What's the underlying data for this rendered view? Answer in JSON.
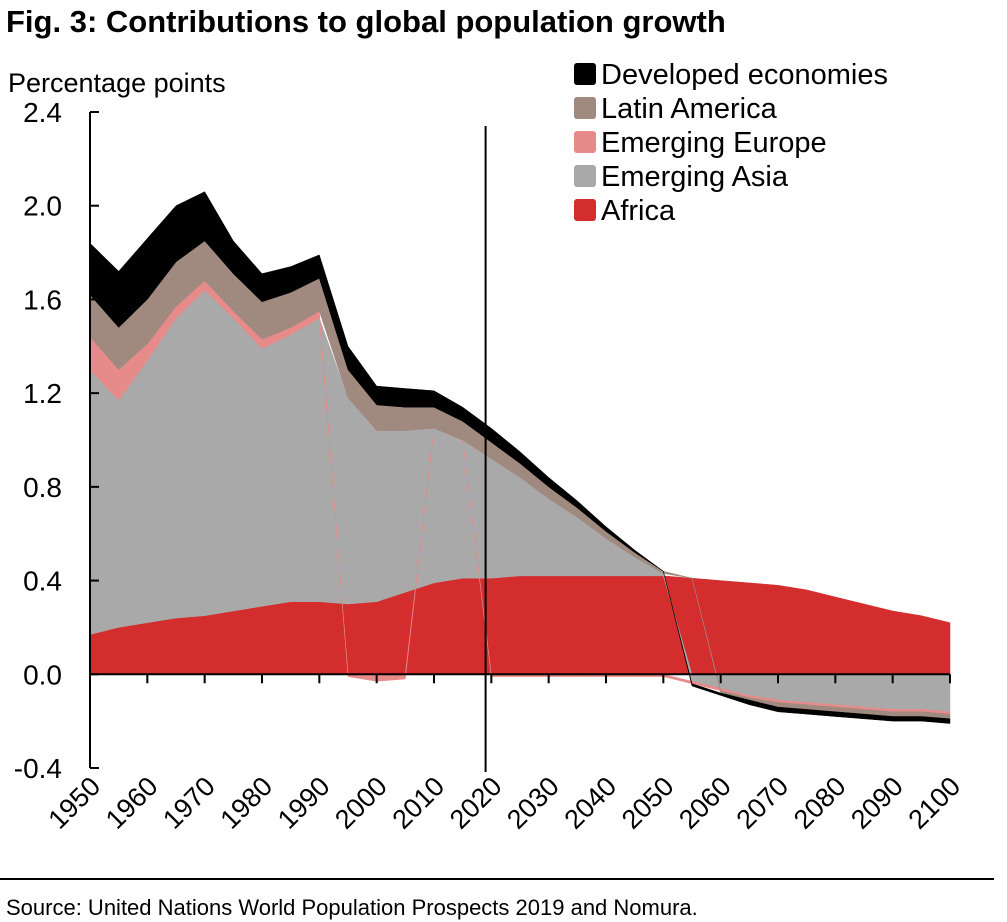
{
  "title": "Fig. 3: Contributions to global population growth",
  "source": "Source: United Nations World Population Prospects 2019 and Nomura.",
  "chart_data": {
    "type": "area",
    "stacked": true,
    "unit_label": "Percentage points",
    "ylim": [
      -0.4,
      2.4
    ],
    "yticks": [
      "2.4",
      "2.0",
      "1.6",
      "1.2",
      "0.8",
      "0.4",
      "0.0",
      "-0.4"
    ],
    "ytick_values": [
      2.4,
      2.0,
      1.6,
      1.2,
      0.8,
      0.4,
      0.0,
      -0.4
    ],
    "xlim": [
      1950,
      2100
    ],
    "xticks": [
      "1950",
      "1960",
      "1970",
      "1980",
      "1990",
      "2000",
      "2010",
      "2020",
      "2030",
      "2040",
      "2050",
      "2060",
      "2070",
      "2080",
      "2090",
      "2100"
    ],
    "xtick_values": [
      1950,
      1960,
      1970,
      1980,
      1990,
      2000,
      2010,
      2020,
      2030,
      2040,
      2050,
      2060,
      2070,
      2080,
      2090,
      2100
    ],
    "vertical_marker_year": 2019,
    "grid": false,
    "legend_position": "top-right",
    "x": [
      1950,
      1955,
      1960,
      1965,
      1970,
      1975,
      1980,
      1985,
      1990,
      1995,
      2000,
      2005,
      2010,
      2015,
      2020,
      2025,
      2030,
      2035,
      2040,
      2045,
      2050,
      2055,
      2060,
      2065,
      2070,
      2075,
      2080,
      2085,
      2090,
      2095,
      2100
    ],
    "series": [
      {
        "name": "Africa",
        "color": "#d42d2d",
        "values": [
          0.17,
          0.2,
          0.22,
          0.24,
          0.25,
          0.27,
          0.29,
          0.31,
          0.31,
          0.3,
          0.31,
          0.35,
          0.39,
          0.41,
          0.41,
          0.42,
          0.42,
          0.42,
          0.42,
          0.42,
          0.42,
          0.41,
          0.4,
          0.39,
          0.38,
          0.36,
          0.33,
          0.3,
          0.27,
          0.25,
          0.22
        ]
      },
      {
        "name": "Emerging Asia",
        "color": "#a9a9a9",
        "values": [
          1.13,
          0.97,
          1.12,
          1.28,
          1.39,
          1.25,
          1.1,
          1.14,
          1.21,
          0.88,
          0.73,
          0.69,
          0.66,
          0.59,
          0.51,
          0.42,
          0.33,
          0.25,
          0.16,
          0.08,
          0.01,
          -0.03,
          -0.06,
          -0.09,
          -0.11,
          -0.12,
          -0.13,
          -0.14,
          -0.15,
          -0.15,
          -0.16
        ]
      },
      {
        "name": "Emerging Europe",
        "color": "#e78a8a",
        "values": [
          0.14,
          0.13,
          0.07,
          0.05,
          0.04,
          0.03,
          0.04,
          0.03,
          0.03,
          -0.01,
          -0.03,
          -0.02,
          0.0,
          0.0,
          -0.01,
          -0.01,
          -0.01,
          -0.01,
          -0.01,
          -0.01,
          -0.01,
          -0.01,
          -0.01,
          -0.01,
          -0.01,
          -0.01,
          -0.01,
          -0.01,
          -0.01,
          -0.01,
          -0.01
        ]
      },
      {
        "name": "Latin America",
        "color": "#a08a80",
        "values": [
          0.18,
          0.18,
          0.19,
          0.19,
          0.17,
          0.16,
          0.16,
          0.15,
          0.14,
          0.12,
          0.11,
          0.1,
          0.09,
          0.08,
          0.07,
          0.06,
          0.05,
          0.04,
          0.03,
          0.02,
          0.01,
          0.0,
          -0.01,
          -0.01,
          -0.02,
          -0.02,
          -0.02,
          -0.02,
          -0.02,
          -0.02,
          -0.02
        ]
      },
      {
        "name": "Developed economies",
        "color": "#000000",
        "values": [
          0.22,
          0.24,
          0.26,
          0.24,
          0.21,
          0.14,
          0.12,
          0.11,
          0.1,
          0.1,
          0.08,
          0.08,
          0.07,
          0.06,
          0.06,
          0.05,
          0.04,
          0.03,
          0.02,
          0.01,
          0.0,
          -0.01,
          -0.01,
          -0.02,
          -0.02,
          -0.02,
          -0.02,
          -0.02,
          -0.02,
          -0.02,
          -0.02
        ]
      }
    ],
    "legend_order": [
      "Developed economies",
      "Latin America",
      "Emerging Europe",
      "Emerging Asia",
      "Africa"
    ]
  }
}
